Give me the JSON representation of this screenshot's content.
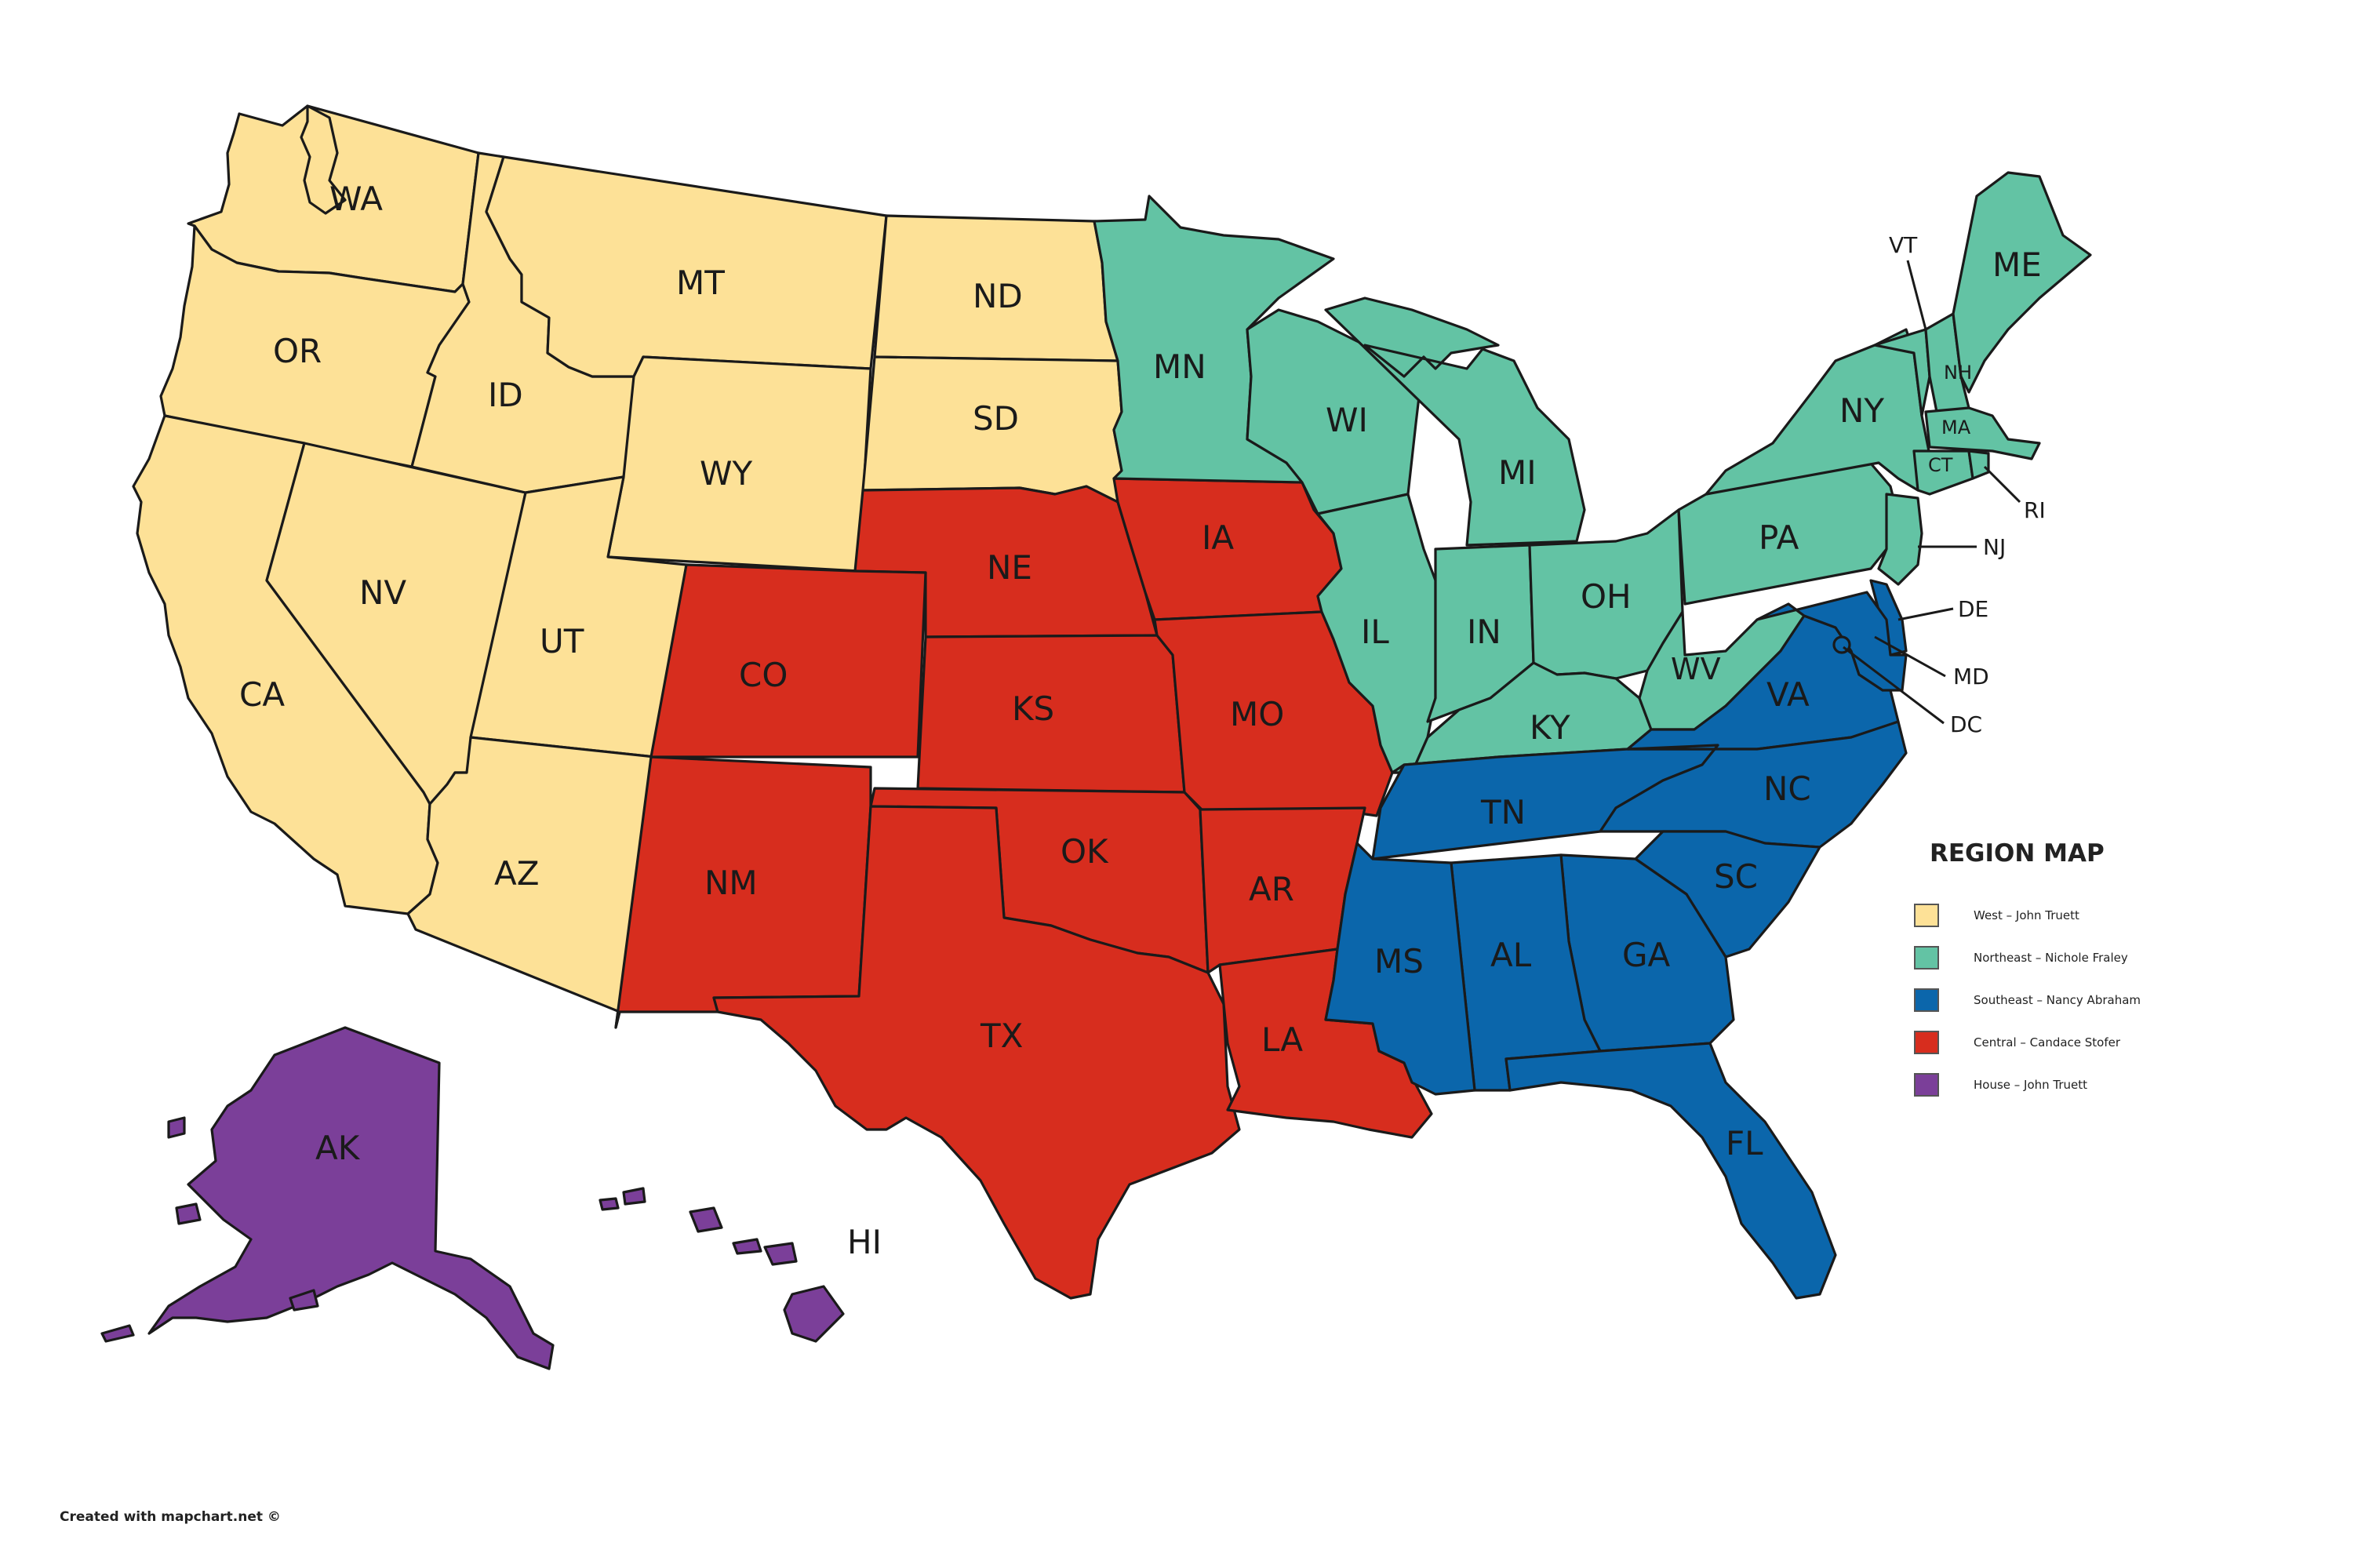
{
  "legend": {
    "title": "REGION MAP",
    "items": [
      {
        "label": "West – John Truett",
        "color": "#fde197"
      },
      {
        "label": "Northeast – Nichole Fraley",
        "color": "#63c3a4"
      },
      {
        "label": "Southeast – Nancy Abraham",
        "color": "#0b66ab"
      },
      {
        "label": "Central – Candace Stofer",
        "color": "#d72d1e"
      },
      {
        "label": "House – John Truett",
        "color": "#7b3f99"
      }
    ]
  },
  "credit": "Created with mapchart.net ©",
  "states": {
    "WA": "WA",
    "OR": "OR",
    "CA": "CA",
    "ID": "ID",
    "NV": "NV",
    "MT": "MT",
    "WY": "WY",
    "UT": "UT",
    "AZ": "AZ",
    "ND": "ND",
    "SD": "SD",
    "NE": "NE",
    "CO": "CO",
    "KS": "KS",
    "OK": "OK",
    "NM": "NM",
    "TX": "TX",
    "IA": "IA",
    "MO": "MO",
    "AR": "AR",
    "LA": "LA",
    "MN": "MN",
    "WI": "WI",
    "MI": "MI",
    "IL": "IL",
    "IN": "IN",
    "OH": "OH",
    "KY": "KY",
    "WV": "WV",
    "PA": "PA",
    "NY": "NY",
    "VT": "VT",
    "NH": "NH",
    "ME": "ME",
    "MA": "MA",
    "CT": "CT",
    "RI": "RI",
    "NJ": "NJ",
    "DE": "DE",
    "MD": "MD",
    "DC": "DC",
    "VA": "VA",
    "NC": "NC",
    "SC": "SC",
    "TN": "TN",
    "MS": "MS",
    "AL": "AL",
    "GA": "GA",
    "FL": "FL",
    "AK": "AK",
    "HI": "HI"
  },
  "regions": {
    "west": [
      "WA",
      "OR",
      "CA",
      "ID",
      "NV",
      "MT",
      "WY",
      "UT",
      "AZ",
      "ND",
      "SD"
    ],
    "northeast": [
      "MN",
      "WI",
      "MI",
      "IL",
      "IN",
      "OH",
      "KY",
      "WV",
      "PA",
      "NY",
      "VT",
      "NH",
      "ME",
      "MA",
      "CT",
      "RI",
      "NJ"
    ],
    "southeast": [
      "TN",
      "VA",
      "NC",
      "SC",
      "MS",
      "AL",
      "GA",
      "FL",
      "DE",
      "MD",
      "DC"
    ],
    "central": [
      "NE",
      "CO",
      "KS",
      "OK",
      "NM",
      "TX",
      "IA",
      "MO",
      "AR",
      "LA"
    ],
    "house": [
      "AK",
      "HI"
    ]
  }
}
